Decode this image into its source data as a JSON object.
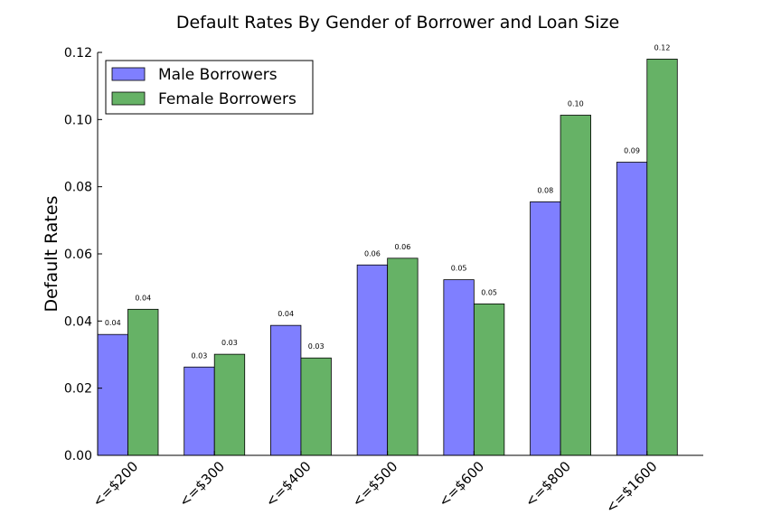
{
  "chart_data": {
    "type": "bar",
    "title": "Default Rates By Gender of Borrower and Loan Size",
    "ylabel": "Default Rates",
    "xlabel": "",
    "categories": [
      "<=$200",
      "<=$300",
      "<=$400",
      "<=$500",
      "<=$600",
      "<=$800",
      "<=$1600"
    ],
    "ylim": [
      0,
      0.12
    ],
    "yticks": [
      "0.00",
      "0.02",
      "0.04",
      "0.06",
      "0.08",
      "0.10",
      "0.12"
    ],
    "legend_position": "top-left",
    "grid": false,
    "series": [
      {
        "name": "Male Borrowers",
        "color": "#7f7fff",
        "values": [
          0.036,
          0.0263,
          0.0387,
          0.0567,
          0.0523,
          0.0755,
          0.0873
        ],
        "labels": [
          "0.04",
          "0.03",
          "0.04",
          "0.06",
          "0.05",
          "0.08",
          "0.09"
        ]
      },
      {
        "name": "Female Borrowers",
        "color": "#66b266",
        "values": [
          0.0435,
          0.0301,
          0.029,
          0.0587,
          0.0451,
          0.1013,
          0.118
        ],
        "labels": [
          "0.04",
          "0.03",
          "0.03",
          "0.06",
          "0.05",
          "0.10",
          "0.12"
        ]
      }
    ]
  }
}
